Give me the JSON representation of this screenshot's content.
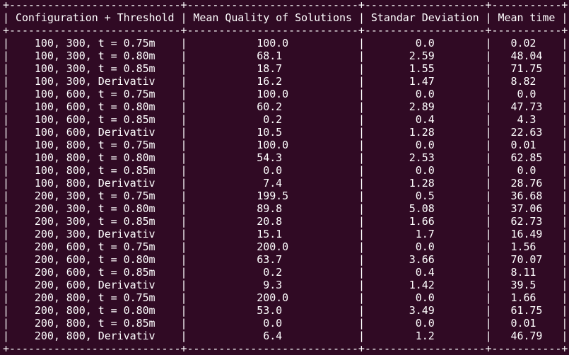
{
  "table": {
    "headers": [
      "Configuration + Threshold",
      "Mean Quality of Solutions",
      "Standar Deviation",
      "Mean time"
    ],
    "rows": [
      [
        "100, 300, t = 0.75m",
        "100.0",
        "0.0",
        "0.02"
      ],
      [
        "100, 300, t = 0.80m",
        "68.1",
        "2.59",
        "48.04"
      ],
      [
        "100, 300, t = 0.85m",
        "18.7",
        "1.55",
        "71.75"
      ],
      [
        "100, 300, Derivativ",
        "16.2",
        "1.47",
        "8.82"
      ],
      [
        "100, 600, t = 0.75m",
        "100.0",
        "0.0",
        "0.0"
      ],
      [
        "100, 600, t = 0.80m",
        "60.2",
        "2.89",
        "47.73"
      ],
      [
        "100, 600, t = 0.85m",
        "0.2",
        "0.4",
        "4.3"
      ],
      [
        "100, 600, Derivativ",
        "10.5",
        "1.28",
        "22.63"
      ],
      [
        "100, 800, t = 0.75m",
        "100.0",
        "0.0",
        "0.01"
      ],
      [
        "100, 800, t = 0.80m",
        "54.3",
        "2.53",
        "62.85"
      ],
      [
        "100, 800, t = 0.85m",
        "0.0",
        "0.0",
        "0.0"
      ],
      [
        "100, 800, Derivativ",
        "7.4",
        "1.28",
        "28.76"
      ],
      [
        "200, 300, t = 0.75m",
        "199.5",
        "0.5",
        "36.68"
      ],
      [
        "200, 300, t = 0.80m",
        "89.8",
        "5.08",
        "37.06"
      ],
      [
        "200, 300, t = 0.85m",
        "20.8",
        "1.66",
        "62.73"
      ],
      [
        "200, 300, Derivativ",
        "15.1",
        "1.7",
        "16.49"
      ],
      [
        "200, 600, t = 0.75m",
        "200.0",
        "0.0",
        "1.56"
      ],
      [
        "200, 600, t = 0.80m",
        "63.7",
        "3.66",
        "70.07"
      ],
      [
        "200, 600, t = 0.85m",
        "0.2",
        "0.4",
        "8.11"
      ],
      [
        "200, 600, Derivativ",
        "9.3",
        "1.42",
        "39.5"
      ],
      [
        "200, 800, t = 0.75m",
        "200.0",
        "0.0",
        "1.66"
      ],
      [
        "200, 800, t = 0.80m",
        "53.0",
        "3.49",
        "61.75"
      ],
      [
        "200, 800, t = 0.85m",
        "0.0",
        "0.0",
        "0.01"
      ],
      [
        "200, 800, Derivativ",
        "6.4",
        "1.2",
        "46.79"
      ]
    ]
  },
  "colors": {
    "terminal_background": "#300a24",
    "terminal_text": "#ffffff"
  }
}
